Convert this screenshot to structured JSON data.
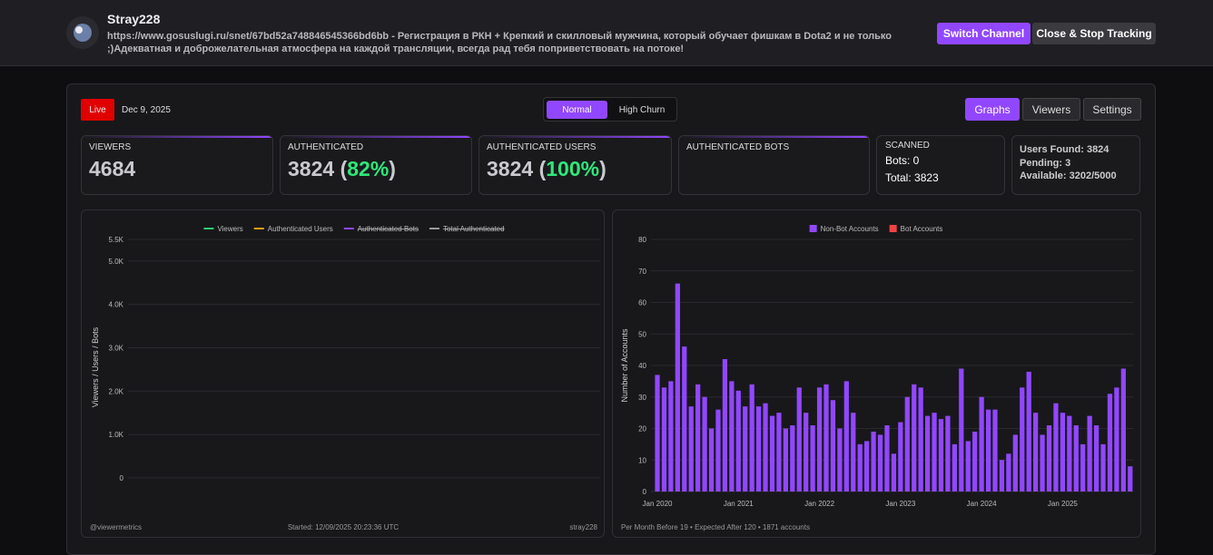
{
  "header": {
    "channel_name": "Stray228",
    "description": "https://www.gosuslugi.ru/snet/67bd52a748846545366bd6bb - Регистрация в РКН + Крепкий и скилловый мужчина, который обучает фишкам в Dota2 и не только ;)Адекватная и доброжелательная атмосфера на каждой трансляции, всегда рад тебя поприветствовать на потоке!",
    "buttons": [
      "Switch Channel",
      "Close & Stop Tracking"
    ]
  },
  "toolbar": {
    "live": "Live",
    "date": "Dec 9, 2025",
    "modes": [
      "Normal",
      "High Churn"
    ],
    "tabs": [
      "Graphs",
      "Viewers",
      "Settings"
    ]
  },
  "stats": {
    "viewers": {
      "label": "VIEWERS",
      "value": 4684
    },
    "authenticated": {
      "label": "AUTHENTICATED",
      "value": 3824,
      "open": "(",
      "percent": "82%",
      "close": ")"
    },
    "authenticated_users": {
      "label": "AUTHENTICATED USERS",
      "value": 3824,
      "open": "(",
      "percent": "100%",
      "close": ")"
    },
    "authenticated_bots": {
      "label": "AUTHENTICATED BOTS"
    },
    "scanned": {
      "label": "SCANNED",
      "bots": "Bots: 0",
      "total": "Total: 3823"
    },
    "info": {
      "users_found": "Users Found: 3824",
      "pending": "Pending: 3",
      "available": "Available: 3202/5000"
    }
  },
  "chart_data": [
    {
      "type": "line",
      "y_label": "Viewers / Users / Bots",
      "x": [],
      "series": [
        {
          "name": "Viewers",
          "color": "#2ecc71",
          "values": [],
          "hidden": false
        },
        {
          "name": "Authenticated Users",
          "color": "#f39c12",
          "values": [],
          "hidden": false
        },
        {
          "name": "Authenticated Bots",
          "color": "#9147ff",
          "values": [],
          "hidden": true
        },
        {
          "name": "Total Authenticated",
          "color": "#9a9a9a",
          "values": [],
          "hidden": true
        }
      ],
      "ylim": [
        -400,
        5500
      ],
      "yticks": [
        0,
        {
          "value": 1000,
          "label": "1.0K"
        },
        {
          "value": 2000,
          "label": "2.0K"
        },
        {
          "value": 3000,
          "label": "3.0K"
        },
        {
          "value": 4000,
          "label": "4.0K"
        },
        {
          "value": 5000,
          "label": "5.0K"
        },
        {
          "value": 5500,
          "label": "5.5K"
        }
      ],
      "grid": true,
      "footer": [
        "@viewermetrics",
        "Started: 12/09/2025 20:23:36 UTC",
        "stray228"
      ]
    },
    {
      "type": "bar",
      "y_label": "Number of Accounts",
      "categories": [
        "Jan 2020",
        null,
        null,
        null,
        null,
        null,
        null,
        null,
        null,
        null,
        null,
        null,
        "Jan 2021",
        null,
        null,
        null,
        null,
        null,
        null,
        null,
        null,
        null,
        null,
        null,
        "Jan 2022",
        null,
        null,
        null,
        null,
        null,
        null,
        null,
        null,
        null,
        null,
        null,
        "Jan 2023",
        null,
        null,
        null,
        null,
        null,
        null,
        null,
        null,
        null,
        null,
        null,
        "Jan 2024",
        null,
        null,
        null,
        null,
        null,
        null,
        null,
        null,
        null,
        null,
        null,
        "Jan 2025",
        null,
        null,
        null,
        null,
        null,
        null,
        null,
        null,
        null,
        null
      ],
      "series": [
        {
          "name": "Non-Bot Accounts",
          "color": "#9147ff",
          "values": [
            37,
            33,
            35,
            66,
            46,
            27,
            34,
            30,
            20,
            26,
            42,
            35,
            32,
            27,
            34,
            27,
            28,
            24,
            25,
            20,
            21,
            33,
            25,
            21,
            33,
            34,
            29,
            20,
            35,
            25,
            15,
            16,
            19,
            18,
            21,
            12,
            22,
            30,
            34,
            33,
            24,
            25,
            23,
            24,
            15,
            39,
            16,
            19,
            30,
            26,
            26,
            10,
            12,
            18,
            33,
            38,
            25,
            18,
            21,
            28,
            25,
            24,
            21,
            15,
            24,
            21,
            15,
            31,
            33,
            39,
            8
          ]
        },
        {
          "name": "Bot Accounts",
          "color": "#ef4444"
        }
      ],
      "ylim": [
        0,
        80
      ],
      "yticks": [
        0,
        10,
        20,
        30,
        40,
        50,
        60,
        70,
        80
      ],
      "grid": true,
      "footer": "Per Month Before 19 • Expected After 120 • 1871 accounts"
    }
  ]
}
